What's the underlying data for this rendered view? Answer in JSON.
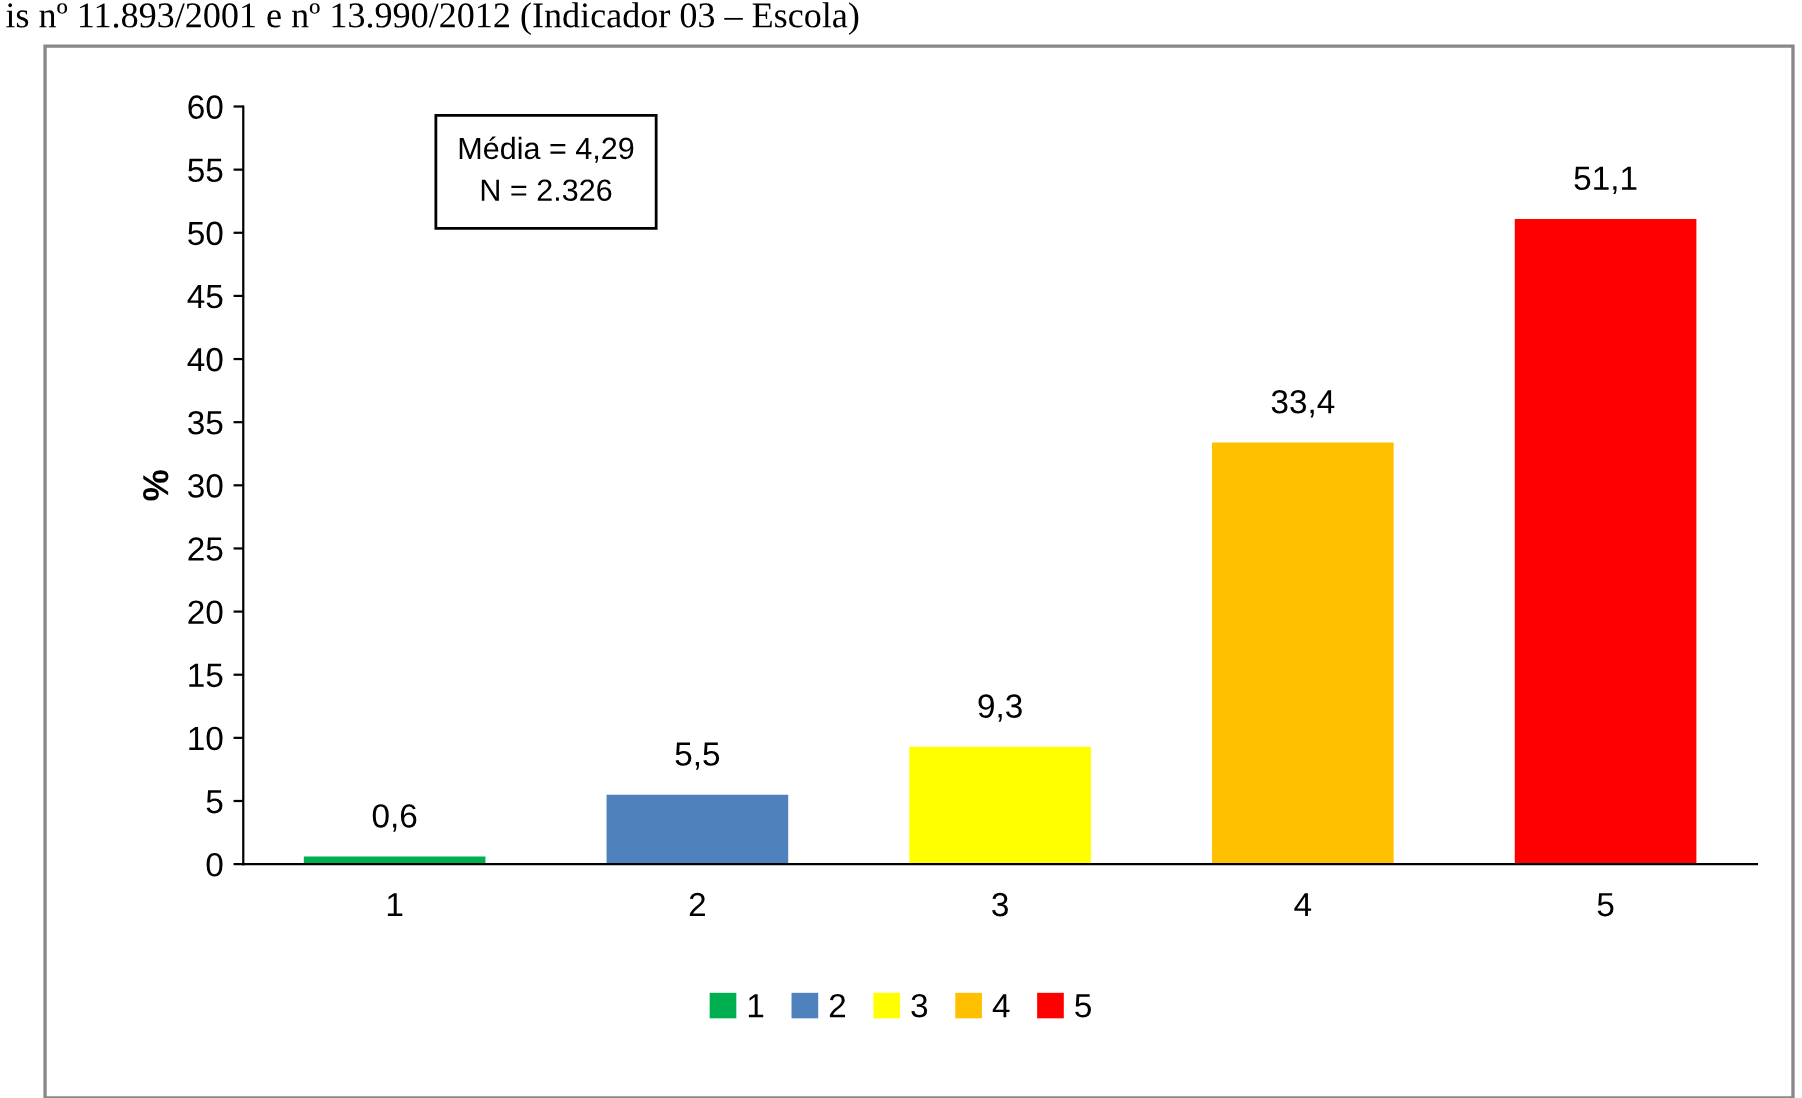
{
  "chart_data": {
    "type": "bar",
    "title": "is nº 11.893/2001 e nº 13.990/2012 (Indicador 03 – Escola)",
    "ylabel": "%",
    "categories": [
      "1",
      "2",
      "3",
      "4",
      "5"
    ],
    "series": [
      {
        "name": "1",
        "color": "#00b050",
        "values": [
          0.6,
          null,
          null,
          null,
          null
        ],
        "value_labels": [
          "0,6",
          null,
          null,
          null,
          null
        ]
      },
      {
        "name": "2",
        "color": "#4f81bd",
        "values": [
          null,
          5.5,
          null,
          null,
          null
        ],
        "value_labels": [
          null,
          "5,5",
          null,
          null,
          null
        ]
      },
      {
        "name": "3",
        "color": "#ffff00",
        "values": [
          null,
          null,
          9.3,
          null,
          null
        ],
        "value_labels": [
          null,
          null,
          "9,3",
          null,
          null
        ]
      },
      {
        "name": "4",
        "color": "#ffc000",
        "values": [
          null,
          null,
          null,
          33.4,
          null
        ],
        "value_labels": [
          null,
          null,
          null,
          "33,4",
          null
        ]
      },
      {
        "name": "5",
        "color": "#ff0000",
        "values": [
          null,
          null,
          null,
          null,
          51.1
        ],
        "value_labels": [
          null,
          null,
          null,
          null,
          "51,1"
        ]
      }
    ],
    "ylim": [
      0,
      60
    ],
    "yticks": [
      0,
      5,
      10,
      15,
      20,
      25,
      30,
      35,
      40,
      45,
      50,
      55,
      60
    ],
    "legend": "bottom",
    "annotations": [
      "Média = 4,29",
      "N = 2.326"
    ]
  }
}
